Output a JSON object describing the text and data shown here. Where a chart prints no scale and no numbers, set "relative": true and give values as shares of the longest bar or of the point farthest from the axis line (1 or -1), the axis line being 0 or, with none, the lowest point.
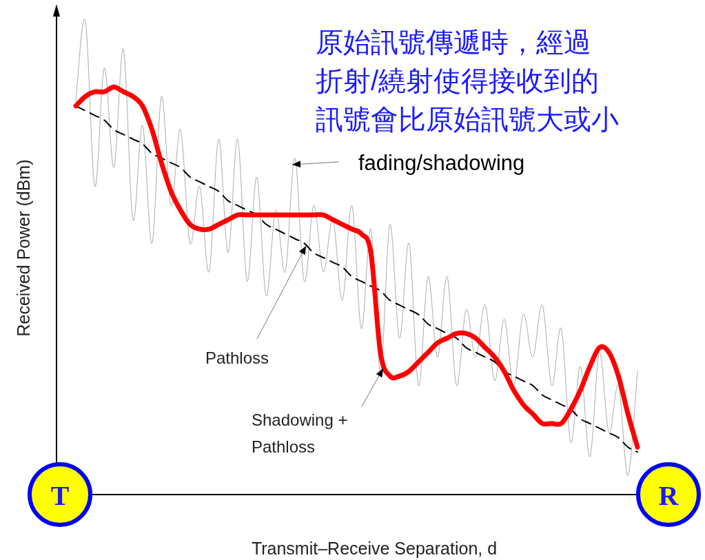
{
  "chart_data": {
    "type": "line",
    "relative": true,
    "xlabel": "Transmit–Receive Separation, d",
    "ylabel": "Received Power (dBm)",
    "annotations": [
      "原始訊號傳遞時，經過折射/繞射使得接收到的訊號會比原始訊號大或小",
      "fading/shadowing",
      "Pathloss",
      "Shadowing +\nPathloss",
      "T",
      "R"
    ],
    "categories": [
      null,
      null,
      null,
      null,
      null,
      null,
      null,
      null,
      null,
      null,
      null,
      null,
      null,
      null,
      null,
      null,
      null,
      null,
      null,
      null,
      null,
      null,
      null,
      null,
      null,
      null,
      null,
      null,
      null,
      null,
      null,
      null,
      null,
      null,
      null,
      null,
      null,
      null,
      null,
      null,
      null,
      null,
      null,
      null,
      null,
      null,
      null,
      null,
      null,
      null,
      null,
      null,
      null,
      null,
      null,
      null,
      null,
      null,
      null,
      null
    ],
    "series": [
      {
        "color": "#aaaaaa",
        "line_style": "solid",
        "values": [
          0.83,
          1.0,
          0.65,
          0.9,
          0.69,
          0.94,
          0.58,
          0.78,
          0.53,
          0.84,
          0.61,
          0.77,
          0.53,
          0.65,
          0.47,
          0.75,
          0.51,
          0.75,
          0.45,
          0.67,
          0.42,
          0.6,
          0.47,
          0.71,
          0.45,
          0.61,
          0.47,
          0.58,
          0.41,
          0.61,
          0.35,
          0.56,
          0.26,
          0.57,
          0.33,
          0.53,
          0.23,
          0.46,
          0.29,
          0.46,
          0.23,
          0.39,
          0.29,
          0.4,
          0.24,
          0.37,
          0.23,
          0.38,
          0.29,
          0.4,
          0.23,
          0.35,
          0.11,
          0.27,
          0.08,
          0.3,
          0.13,
          0.23,
          0.04,
          0.26
        ]
      },
      {
        "color": "#000000",
        "line_style": "dashed",
        "values": [
          0.82,
          0.81,
          0.8,
          0.79,
          0.77,
          0.76,
          0.75,
          0.74,
          0.72,
          0.71,
          0.7,
          0.69,
          0.67,
          0.66,
          0.65,
          0.64,
          0.62,
          0.61,
          0.6,
          0.59,
          0.57,
          0.56,
          0.55,
          0.54,
          0.53,
          0.51,
          0.5,
          0.49,
          0.48,
          0.46,
          0.45,
          0.44,
          0.43,
          0.41,
          0.4,
          0.39,
          0.38,
          0.36,
          0.35,
          0.34,
          0.33,
          0.31,
          0.3,
          0.29,
          0.28,
          0.26,
          0.25,
          0.24,
          0.23,
          0.21,
          0.2,
          0.19,
          0.18,
          0.16,
          0.15,
          0.14,
          0.13,
          0.12,
          0.1,
          0.09
        ]
      },
      {
        "color": "#ff0000",
        "line_style": "solid",
        "values": [
          0.82,
          0.84,
          0.85,
          0.85,
          0.86,
          0.85,
          0.84,
          0.82,
          0.77,
          0.7,
          0.64,
          0.6,
          0.57,
          0.56,
          0.56,
          0.57,
          0.58,
          0.59,
          0.59,
          0.59,
          0.59,
          0.59,
          0.59,
          0.59,
          0.59,
          0.59,
          0.59,
          0.58,
          0.57,
          0.56,
          0.55,
          0.51,
          0.3,
          0.25,
          0.25,
          0.26,
          0.28,
          0.3,
          0.32,
          0.33,
          0.34,
          0.34,
          0.33,
          0.31,
          0.29,
          0.26,
          0.22,
          0.19,
          0.17,
          0.15,
          0.15,
          0.15,
          0.18,
          0.22,
          0.27,
          0.31,
          0.3,
          0.25,
          0.17,
          0.1
        ]
      }
    ]
  }
}
